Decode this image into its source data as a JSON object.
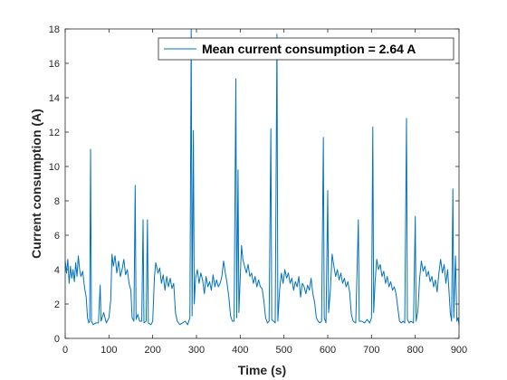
{
  "chart_data": {
    "type": "line",
    "xlabel": "Time (s)",
    "ylabel": "Current consumption (A)",
    "xlim": [
      0,
      900
    ],
    "ylim": [
      0,
      18
    ],
    "xticks": [
      0,
      100,
      200,
      300,
      400,
      500,
      600,
      700,
      800,
      900
    ],
    "yticks": [
      0,
      2,
      4,
      6,
      8,
      10,
      12,
      14,
      16,
      18
    ],
    "legend": "upper right",
    "x": [
      0,
      3,
      6,
      9,
      12,
      15,
      18,
      21,
      24,
      27,
      30,
      33,
      36,
      40,
      44,
      48,
      51,
      54,
      56,
      58,
      60,
      64,
      70,
      76,
      80,
      82,
      88,
      94,
      100,
      104,
      107,
      110,
      114,
      118,
      122,
      126,
      130,
      134,
      138,
      142,
      146,
      150,
      153,
      157,
      160,
      162,
      166,
      170,
      175,
      178,
      180,
      185,
      188,
      190,
      196,
      200,
      204,
      207,
      212,
      216,
      220,
      224,
      228,
      232,
      236,
      240,
      244,
      248,
      252,
      256,
      262,
      268,
      274,
      280,
      285,
      288,
      290,
      293,
      295,
      298,
      302,
      306,
      310,
      314,
      318,
      322,
      326,
      330,
      334,
      338,
      342,
      346,
      350,
      354,
      358,
      362,
      366,
      370,
      374,
      378,
      382,
      386,
      390,
      392,
      395,
      397,
      400,
      403,
      406,
      410,
      414,
      418,
      422,
      426,
      430,
      434,
      438,
      442,
      446,
      450,
      454,
      458,
      462,
      466,
      470,
      472,
      476,
      480,
      484,
      486,
      490,
      494,
      498,
      502,
      506,
      510,
      514,
      518,
      522,
      526,
      530,
      534,
      538,
      542,
      546,
      550,
      554,
      558,
      562,
      566,
      570,
      574,
      578,
      582,
      586,
      590,
      592,
      596,
      600,
      602,
      606,
      610,
      614,
      618,
      622,
      626,
      630,
      634,
      638,
      642,
      646,
      650,
      654,
      658,
      664,
      670,
      672,
      678,
      684,
      690,
      696,
      700,
      703,
      705,
      708,
      712,
      716,
      720,
      724,
      728,
      732,
      736,
      740,
      744,
      748,
      752,
      756,
      760,
      764,
      768,
      772,
      776,
      780,
      782,
      786,
      790,
      796,
      800,
      802,
      806,
      810,
      814,
      818,
      822,
      826,
      830,
      834,
      838,
      842,
      846,
      850,
      854,
      858,
      862,
      866,
      870,
      874,
      877,
      880,
      883,
      886,
      888,
      892,
      895,
      898,
      900
    ],
    "series": [
      {
        "name": "Mean current consumption = 2.64 A",
        "color": "#0072bd",
        "values": [
          4.5,
          3.8,
          4.6,
          3.2,
          4.2,
          3.5,
          4.0,
          3.3,
          4.4,
          3.6,
          4.8,
          4.0,
          3.6,
          3.9,
          3.0,
          2.4,
          1.2,
          0.9,
          1.0,
          11.0,
          1.0,
          0.8,
          0.9,
          0.9,
          3.1,
          1.0,
          1.5,
          0.9,
          1.2,
          2.2,
          4.9,
          4.2,
          4.8,
          3.8,
          4.5,
          3.6,
          4.0,
          4.6,
          3.7,
          4.0,
          3.2,
          2.8,
          1.2,
          1.0,
          8.9,
          1.1,
          1.4,
          1.0,
          1.0,
          6.9,
          0.9,
          1.0,
          6.9,
          0.9,
          0.8,
          1.0,
          3.6,
          4.4,
          3.8,
          4.1,
          3.2,
          3.7,
          2.8,
          3.6,
          3.0,
          3.5,
          2.9,
          3.2,
          1.5,
          1.0,
          0.8,
          0.9,
          1.0,
          0.8,
          1.2,
          18,
          1.3,
          12.1,
          2.0,
          3.5,
          4.0,
          3.2,
          3.8,
          3.4,
          2.6,
          3.6,
          3.0,
          3.3,
          2.8,
          3.7,
          3.0,
          3.4,
          3.0,
          3.2,
          3.6,
          4.5,
          3.8,
          3.2,
          2.4,
          1.3,
          1.0,
          1.0,
          15.1,
          1.2,
          9.8,
          1.5,
          3.5,
          5.4,
          4.6,
          4.2,
          3.8,
          4.3,
          3.6,
          3.8,
          3.2,
          3.6,
          3.0,
          3.4,
          3.0,
          2.9,
          2.2,
          1.2,
          0.9,
          1.0,
          12.2,
          1.1,
          1.0,
          0.9,
          17.7,
          1.0,
          2.8,
          3.8,
          3.2,
          4.0,
          3.5,
          3.8,
          3.2,
          3.5,
          2.8,
          3.3,
          3.0,
          3.6,
          2.4,
          3.2,
          3.0,
          2.6,
          3.1,
          2.8,
          3.5,
          2.6,
          2.1,
          1.2,
          1.0,
          0.9,
          1.0,
          11.7,
          1.2,
          0.9,
          8.6,
          1.5,
          2.8,
          4.9,
          4.2,
          3.6,
          4.0,
          3.4,
          3.8,
          3.2,
          3.5,
          3.0,
          3.3,
          2.7,
          1.4,
          1.0,
          0.9,
          6.9,
          1.0,
          1.0,
          0.9,
          1.1,
          0.9,
          1.2,
          12.3,
          1.5,
          3.2,
          4.6,
          4.0,
          4.3,
          3.6,
          3.9,
          3.2,
          3.6,
          3.0,
          3.3,
          2.8,
          3.0,
          2.6,
          1.8,
          1.0,
          0.9,
          1.0,
          0.9,
          12.8,
          1.1,
          0.9,
          1.0,
          0.9,
          7.1,
          1.0,
          1.6,
          3.5,
          4.5,
          3.9,
          4.2,
          3.6,
          3.9,
          3.3,
          3.6,
          3.0,
          3.4,
          2.7,
          3.8,
          4.6,
          3.8,
          4.3,
          3.2,
          4.0,
          2.8,
          1.5,
          1.0,
          8.7,
          1.2,
          4.8,
          1.0,
          1.2,
          0.8
        ]
      }
    ]
  }
}
